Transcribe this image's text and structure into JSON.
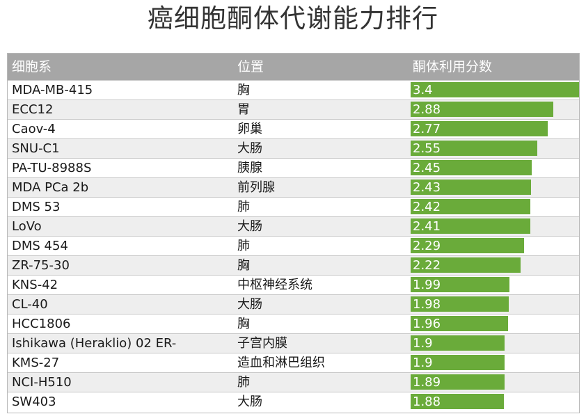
{
  "title": "癌细胞酮体代谢能力排行",
  "headers": {
    "col1": "细胞系",
    "col2": "位置",
    "col3": "酮体利用分数"
  },
  "colors": {
    "bar": "#6aab3a",
    "header": "#a6a6a6",
    "alt_row": "#eeeeee"
  },
  "chart_data": {
    "type": "bar",
    "orientation": "horizontal",
    "title": "癌细胞酮体代谢能力排行",
    "xlim": [
      0,
      3.4
    ],
    "rows": [
      {
        "cell_line": "MDA-MB-415",
        "location": "胸",
        "score": 3.4
      },
      {
        "cell_line": "ECC12",
        "location": "胃",
        "score": 2.88
      },
      {
        "cell_line": "Caov-4",
        "location": "卵巢",
        "score": 2.77
      },
      {
        "cell_line": "SNU-C1",
        "location": "大肠",
        "score": 2.55
      },
      {
        "cell_line": "PA-TU-8988S",
        "location": "胰腺",
        "score": 2.45
      },
      {
        "cell_line": "MDA PCa 2b",
        "location": "前列腺",
        "score": 2.43
      },
      {
        "cell_line": "DMS 53",
        "location": "肺",
        "score": 2.42
      },
      {
        "cell_line": "LoVo",
        "location": "大肠",
        "score": 2.41
      },
      {
        "cell_line": "DMS 454",
        "location": "肺",
        "score": 2.29
      },
      {
        "cell_line": "ZR-75-30",
        "location": "胸",
        "score": 2.22
      },
      {
        "cell_line": "KNS-42",
        "location": "中枢神经系统",
        "score": 1.99
      },
      {
        "cell_line": "CL-40",
        "location": "大肠",
        "score": 1.98
      },
      {
        "cell_line": "HCC1806",
        "location": "胸",
        "score": 1.96
      },
      {
        "cell_line": "Ishikawa (Heraklio) 02 ER-",
        "location": "子宫内膜",
        "score": 1.9
      },
      {
        "cell_line": "KMS-27",
        "location": "造血和淋巴组织",
        "score": 1.9
      },
      {
        "cell_line": "NCI-H510",
        "location": "肺",
        "score": 1.89
      },
      {
        "cell_line": "SW403",
        "location": "大肠",
        "score": 1.88
      }
    ]
  }
}
